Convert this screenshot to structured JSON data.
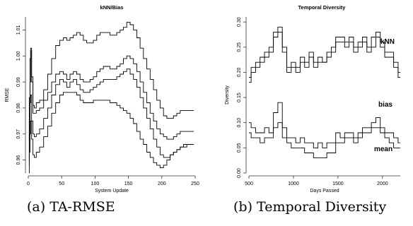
{
  "captions": [
    "(a) TA-RMSE",
    "(b) Temporal Diversity"
  ],
  "chart_data": [
    {
      "type": "line",
      "title": "kNN/Bias",
      "xlabel": "System Update",
      "ylabel": "RMSE",
      "xlim": [
        0,
        250
      ],
      "ylim": [
        0.955,
        1.015
      ],
      "xticks": [
        0,
        50,
        100,
        150,
        200,
        250
      ],
      "yticks": [
        0.96,
        0.97,
        0.98,
        0.99,
        1.0,
        1.01
      ],
      "ytick_labels": [
        "0.96",
        "0.97",
        "0.98",
        "0.99",
        "1.00",
        "1.01"
      ],
      "grid": false,
      "line_color": "#000000",
      "series": [
        {
          "x": [
            1,
            2,
            3,
            4,
            6,
            8,
            10,
            14,
            20,
            26,
            32,
            38,
            44,
            50,
            55,
            60,
            65,
            70,
            75,
            80,
            85,
            90,
            95,
            100,
            105,
            110,
            115,
            120,
            125,
            130,
            135,
            140,
            145,
            150,
            155,
            160,
            165,
            170,
            175,
            180,
            185,
            190,
            195,
            200,
            205,
            210,
            215,
            220,
            225,
            230,
            235,
            240,
            245,
            248
          ],
          "y": [
            0.968,
            0.984,
            0.999,
            1.003,
            0.992,
            0.981,
            0.98,
            0.982,
            0.983,
            0.987,
            0.993,
            0.999,
            1.004,
            1.006,
            1.007,
            1.006,
            1.007,
            1.008,
            1.009,
            1.008,
            1.006,
            1.005,
            1.005,
            1.006,
            1.008,
            1.009,
            1.009,
            1.009,
            1.008,
            1.008,
            1.009,
            1.01,
            1.011,
            1.013,
            1.012,
            1.01,
            1.007,
            1.003,
            0.999,
            0.995,
            0.991,
            0.987,
            0.983,
            0.98,
            0.977,
            0.976,
            0.976,
            0.977,
            0.978,
            0.979,
            0.979,
            0.979,
            0.979,
            0.979
          ]
        },
        {
          "x": [
            1,
            2,
            3,
            4,
            6,
            8,
            10,
            14,
            20,
            26,
            32,
            38,
            44,
            50,
            55,
            60,
            65,
            70,
            75,
            80,
            85,
            90,
            95,
            100,
            105,
            110,
            115,
            120,
            125,
            130,
            135,
            140,
            145,
            150,
            155,
            160,
            165,
            170,
            175,
            180,
            185,
            190,
            195,
            200,
            205,
            210,
            215,
            220,
            225,
            230,
            235,
            240,
            245,
            248
          ],
          "y": [
            0.96,
            0.975,
            0.99,
            1.002,
            0.99,
            0.978,
            0.978,
            0.979,
            0.98,
            0.983,
            0.986,
            0.99,
            0.993,
            0.994,
            0.993,
            0.991,
            0.993,
            0.994,
            0.993,
            0.991,
            0.99,
            0.99,
            0.991,
            0.992,
            0.994,
            0.995,
            0.996,
            0.996,
            0.995,
            0.995,
            0.996,
            0.997,
            0.999,
            1.0,
            0.999,
            0.997,
            0.994,
            0.99,
            0.986,
            0.982,
            0.978,
            0.975,
            0.972,
            0.97,
            0.969,
            0.968,
            0.968,
            0.969,
            0.97,
            0.971,
            0.971,
            0.971,
            0.971,
            0.971
          ]
        },
        {
          "x": [
            1,
            2,
            3,
            4,
            6,
            8,
            10,
            14,
            20,
            26,
            32,
            38,
            44,
            50,
            55,
            60,
            65,
            70,
            75,
            80,
            85,
            90,
            95,
            100,
            105,
            110,
            115,
            120,
            125,
            130,
            135,
            140,
            145,
            150,
            155,
            160,
            165,
            170,
            175,
            180,
            185,
            190,
            195,
            200,
            205,
            210,
            215,
            220,
            225,
            230,
            235,
            240,
            245,
            248
          ],
          "y": [
            0.958,
            0.97,
            0.982,
            0.985,
            0.975,
            0.97,
            0.969,
            0.97,
            0.972,
            0.976,
            0.98,
            0.985,
            0.989,
            0.991,
            0.99,
            0.988,
            0.99,
            0.991,
            0.989,
            0.987,
            0.986,
            0.986,
            0.987,
            0.988,
            0.989,
            0.99,
            0.991,
            0.991,
            0.991,
            0.991,
            0.992,
            0.993,
            0.994,
            0.995,
            0.993,
            0.991,
            0.988,
            0.984,
            0.98,
            0.976,
            0.972,
            0.968,
            0.965,
            0.962,
            0.961,
            0.961,
            0.962,
            0.963,
            0.964,
            0.965,
            0.965,
            0.966,
            0.966,
            0.966
          ]
        },
        {
          "x": [
            1,
            2,
            3,
            4,
            6,
            8,
            10,
            14,
            20,
            26,
            32,
            38,
            44,
            50,
            55,
            60,
            65,
            70,
            75,
            80,
            85,
            90,
            95,
            100,
            105,
            110,
            115,
            120,
            125,
            130,
            135,
            140,
            145,
            150,
            155,
            160,
            165,
            170,
            175,
            180,
            185,
            190,
            195,
            200,
            205,
            210,
            215,
            220,
            225,
            230,
            235,
            240,
            245,
            248
          ],
          "y": [
            0.955,
            0.963,
            0.97,
            0.975,
            0.968,
            0.962,
            0.961,
            0.963,
            0.965,
            0.969,
            0.973,
            0.978,
            0.982,
            0.985,
            0.986,
            0.986,
            0.986,
            0.986,
            0.985,
            0.983,
            0.982,
            0.982,
            0.982,
            0.983,
            0.983,
            0.983,
            0.983,
            0.983,
            0.982,
            0.982,
            0.981,
            0.98,
            0.979,
            0.978,
            0.976,
            0.974,
            0.971,
            0.968,
            0.966,
            0.963,
            0.961,
            0.959,
            0.958,
            0.957,
            0.958,
            0.96,
            0.962,
            0.963,
            0.964,
            0.965,
            0.966,
            0.966,
            0.966,
            0.966
          ]
        }
      ]
    },
    {
      "type": "line",
      "title": "Temporal Diversity",
      "xlabel": "Days Passed",
      "ylabel": "Diversity",
      "xlim": [
        500,
        2200
      ],
      "ylim": [
        0,
        0.31
      ],
      "xticks": [
        500,
        1000,
        1500,
        2000
      ],
      "yticks": [
        0.0,
        0.05,
        0.1,
        0.15,
        0.2,
        0.25,
        0.3
      ],
      "ytick_labels": [
        "0.00",
        "0.05",
        "0.10",
        "0.15",
        "0.20",
        "0.25",
        "0.30"
      ],
      "grid": false,
      "line_color": "#000000",
      "series": [
        {
          "name": "kNN",
          "x": [
            500,
            550,
            600,
            650,
            700,
            750,
            800,
            850,
            900,
            950,
            1000,
            1050,
            1100,
            1150,
            1200,
            1250,
            1300,
            1350,
            1400,
            1450,
            1500,
            1550,
            1600,
            1650,
            1700,
            1750,
            1800,
            1850,
            1900,
            1950,
            2000,
            2050,
            2100,
            2150,
            2200
          ],
          "y": [
            0.19,
            0.21,
            0.22,
            0.23,
            0.24,
            0.25,
            0.28,
            0.29,
            0.25,
            0.21,
            0.22,
            0.21,
            0.23,
            0.22,
            0.24,
            0.22,
            0.23,
            0.22,
            0.24,
            0.25,
            0.27,
            0.27,
            0.26,
            0.27,
            0.25,
            0.26,
            0.27,
            0.25,
            0.27,
            0.28,
            0.26,
            0.24,
            0.24,
            0.22,
            0.2
          ]
        },
        {
          "x": [
            500,
            550,
            600,
            650,
            700,
            750,
            800,
            850,
            900,
            950,
            1000,
            1050,
            1100,
            1150,
            1200,
            1250,
            1300,
            1350,
            1400,
            1450,
            1500,
            1550,
            1600,
            1650,
            1700,
            1750,
            1800,
            1850,
            1900,
            1950,
            2000,
            2050,
            2100,
            2150,
            2200
          ],
          "y": [
            0.18,
            0.2,
            0.21,
            0.22,
            0.23,
            0.24,
            0.27,
            0.28,
            0.24,
            0.2,
            0.21,
            0.2,
            0.22,
            0.21,
            0.23,
            0.21,
            0.22,
            0.22,
            0.23,
            0.24,
            0.26,
            0.26,
            0.25,
            0.26,
            0.24,
            0.25,
            0.26,
            0.24,
            0.25,
            0.27,
            0.25,
            0.23,
            0.23,
            0.21,
            0.19
          ]
        },
        {
          "name": "bias",
          "x": [
            500,
            550,
            600,
            650,
            700,
            750,
            800,
            850,
            900,
            950,
            1000,
            1050,
            1100,
            1150,
            1200,
            1250,
            1300,
            1350,
            1400,
            1450,
            1500,
            1550,
            1600,
            1650,
            1700,
            1750,
            1800,
            1850,
            1900,
            1950,
            2000,
            2050,
            2100,
            2150,
            2200
          ],
          "y": [
            0.1,
            0.09,
            0.08,
            0.08,
            0.09,
            0.08,
            0.12,
            0.14,
            0.09,
            0.07,
            0.07,
            0.06,
            0.07,
            0.06,
            0.06,
            0.05,
            0.06,
            0.05,
            0.06,
            0.06,
            0.08,
            0.07,
            0.08,
            0.08,
            0.07,
            0.08,
            0.09,
            0.09,
            0.1,
            0.11,
            0.09,
            0.08,
            0.08,
            0.07,
            0.06
          ]
        },
        {
          "name": "mean",
          "x": [
            500,
            550,
            600,
            650,
            700,
            750,
            800,
            850,
            900,
            950,
            1000,
            1050,
            1100,
            1150,
            1200,
            1250,
            1300,
            1350,
            1400,
            1450,
            1500,
            1550,
            1600,
            1650,
            1700,
            1750,
            1800,
            1850,
            1900,
            1950,
            2000,
            2050,
            2100,
            2150,
            2200
          ],
          "y": [
            0.08,
            0.07,
            0.07,
            0.06,
            0.07,
            0.07,
            0.09,
            0.1,
            0.07,
            0.06,
            0.05,
            0.05,
            0.05,
            0.04,
            0.04,
            0.03,
            0.03,
            0.03,
            0.04,
            0.04,
            0.06,
            0.06,
            0.07,
            0.07,
            0.06,
            0.07,
            0.08,
            0.08,
            0.09,
            0.09,
            0.08,
            0.07,
            0.06,
            0.05,
            0.05
          ]
        }
      ]
    }
  ]
}
